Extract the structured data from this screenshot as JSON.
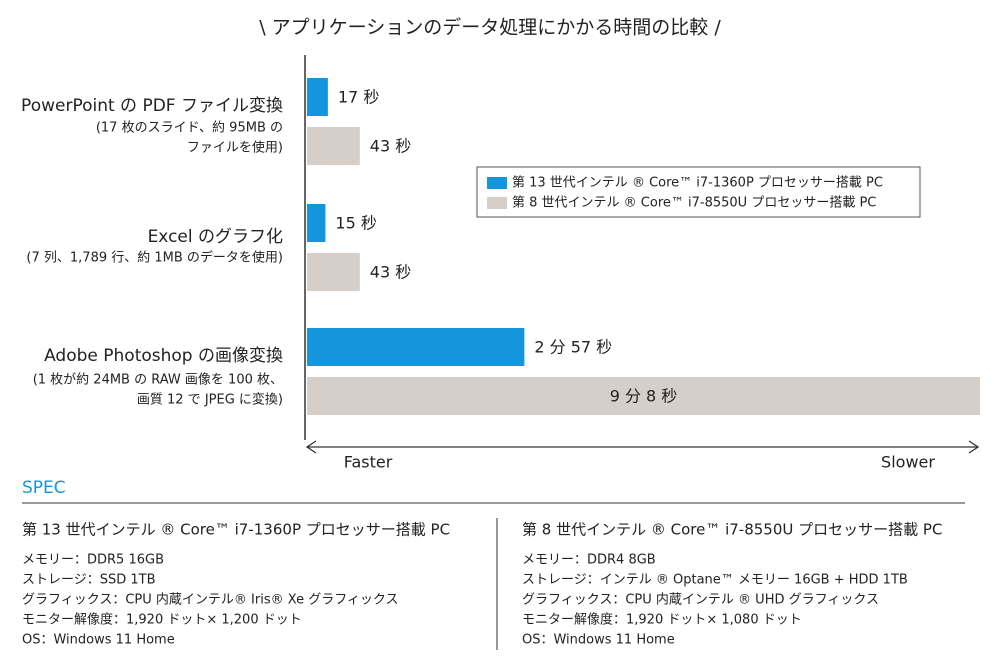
{
  "chart_data": {
    "type": "bar",
    "orientation": "horizontal",
    "title": "\\ アプリケーションのデータ処理にかかる時間の比較 /",
    "categories": [
      "PowerPoint の PDF ファイル変換",
      "Excel のグラフ化",
      "Adobe Photoshop の画像変換"
    ],
    "category_notes": [
      [
        "(17 枚のスライド、約 95MB の",
        "ファイルを使用)"
      ],
      [
        "(7 列、1,789 行、約 1MB のデータを使用)"
      ],
      [
        "(1 枚が約 24MB の RAW 画像を 100 枚、",
        "画質 12 で JPEG に変換)"
      ]
    ],
    "series": [
      {
        "name": "第 13 世代インテル ® Core™ i7-1360P プロセッサー搭載 PC",
        "color": "#1596dc",
        "values": [
          17,
          15,
          177
        ],
        "value_labels": [
          "17 秒",
          "15 秒",
          "2 分 57 秒"
        ]
      },
      {
        "name": "第 8 世代インテル ®  Core™ i7-8550U プロセッサー搭載 PC",
        "color": "#d6cec8",
        "values": [
          43,
          43,
          548
        ],
        "value_labels": [
          "43 秒",
          "43 秒",
          "9 分 8 秒"
        ]
      }
    ],
    "xlim": [
      0,
      548
    ],
    "axis_left_label": "Faster",
    "axis_right_label": "Slower",
    "legend": "right"
  },
  "spec": {
    "title": "SPEC",
    "columns": [
      {
        "heading": "第 13 世代インテル ®  Core™ i7-1360P プロセッサー搭載 PC",
        "lines": [
          "メモリー：DDR5 16GB",
          "ストレージ：SSD 1TB",
          "グラフィックス：CPU 内蔵インテル® Iris® Xe グラフィックス",
          "モニター解像度：1,920 ドット× 1,200 ドット",
          "OS：Windows 11 Home"
        ]
      },
      {
        "heading": "第 8 世代インテル ®  Core™ i7-8550U プロセッサー搭載 PC",
        "lines": [
          "メモリー：DDR4 8GB",
          "ストレージ：インテル ® Optane™ メモリー 16GB + HDD 1TB",
          "グラフィックス：CPU 内蔵インテル ® UHD グラフィックス",
          "モニター解像度：1,920 ドット× 1,080 ドット",
          "OS：Windows 11 Home"
        ]
      }
    ]
  }
}
